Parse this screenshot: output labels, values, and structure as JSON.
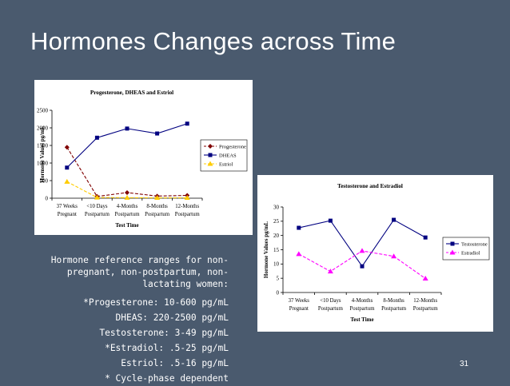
{
  "slide": {
    "title": "Hormones Changes across Time",
    "page_number": "31"
  },
  "reference": {
    "intro": "Hormone reference ranges for non-pregnant, non-postpartum, non-lactating women:",
    "lines": [
      "*Progesterone: 10-600 pg/mL",
      "DHEAS: 220-2500 pg/mL",
      "Testosterone: 3-49 pg/mL",
      "*Estradiol: .5-25 pg/mL",
      "Estriol: .5-16 pg/mL",
      "* Cycle-phase dependent"
    ]
  },
  "chart_data": [
    {
      "type": "line",
      "title": "Progesterone, DHEAS and Estriol",
      "xlabel": "Test Time",
      "ylabel": "Hormone Values pg/mL",
      "categories": [
        [
          "37 Weeks",
          "Pregnant"
        ],
        [
          "<10 Days",
          "Postpartum"
        ],
        [
          "4-Months",
          "Postpartum"
        ],
        [
          "8-Months",
          "Postpartum"
        ],
        [
          "12-Months",
          "Postpartum"
        ]
      ],
      "ylim": [
        0,
        2500
      ],
      "yticks": [
        0,
        500,
        1000,
        1500,
        2000,
        2500
      ],
      "legend_position": "right",
      "grid": false,
      "series": [
        {
          "name": "Progesterone",
          "values": [
            1450,
            50,
            160,
            60,
            80
          ],
          "color": "#800000",
          "marker": "diamond",
          "dash": true
        },
        {
          "name": "DHEAS",
          "values": [
            870,
            1720,
            1980,
            1840,
            2120
          ],
          "color": "#000080",
          "marker": "square",
          "dash": false
        },
        {
          "name": "Estriol",
          "values": [
            470,
            20,
            15,
            10,
            10
          ],
          "color": "#ffcc00",
          "marker": "triangle",
          "dash": true
        }
      ]
    },
    {
      "type": "line",
      "title": "Testosterone and Estradiol",
      "xlabel": "Test Time",
      "ylabel": "Hormone Values pg/mL",
      "categories": [
        [
          "37 Weeks",
          "Pregnant"
        ],
        [
          "<10 Days",
          "Postpartum"
        ],
        [
          "4-Months",
          "Postpartum"
        ],
        [
          "8-Months",
          "Postpartum"
        ],
        [
          "12-Months",
          "Postpartum"
        ]
      ],
      "ylim": [
        0,
        30
      ],
      "yticks": [
        0,
        5,
        10,
        15,
        20,
        25,
        30
      ],
      "legend_position": "right",
      "grid": false,
      "series": [
        {
          "name": "Testosterone",
          "values": [
            22.7,
            25.2,
            9.2,
            25.5,
            19.3
          ],
          "color": "#000080",
          "marker": "square",
          "dash": false
        },
        {
          "name": "Estradiol",
          "values": [
            13.5,
            7.4,
            14.6,
            12.7,
            4.9
          ],
          "color": "#ff00ff",
          "marker": "triangle",
          "dash": true
        }
      ]
    }
  ]
}
